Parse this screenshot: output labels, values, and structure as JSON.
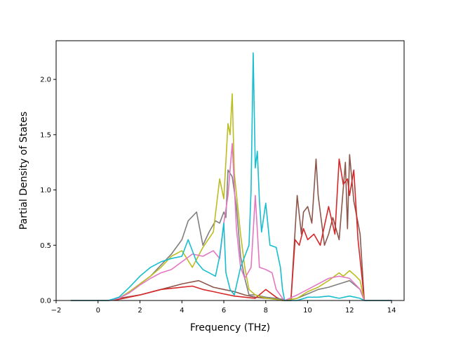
{
  "chart_data": {
    "type": "line",
    "title": "",
    "xlabel": "Frequency (THz)",
    "ylabel": "Partial Density of States",
    "xlim": [
      -2.0,
      14.6
    ],
    "ylim": [
      0.0,
      2.35
    ],
    "xticks": [
      -2,
      0,
      2,
      4,
      6,
      8,
      10,
      12,
      14
    ],
    "xtick_labels": [
      "−2",
      "0",
      "2",
      "4",
      "6",
      "8",
      "10",
      "12",
      "14"
    ],
    "yticks": [
      0.0,
      0.5,
      1.0,
      1.5,
      2.0
    ],
    "ytick_labels": [
      "0.0",
      "0.5",
      "1.0",
      "1.5",
      "2.0"
    ],
    "grid": false,
    "legend": "none",
    "series": [
      {
        "color": "#8c564b",
        "x": [
          -1.3,
          0.5,
          1.0,
          2.0,
          3.0,
          4.0,
          4.8,
          5.5,
          6.0,
          6.5,
          7.0,
          7.5,
          8.0,
          8.5,
          8.8,
          8.9,
          9.2,
          9.5,
          9.7,
          9.8,
          10.0,
          10.2,
          10.4,
          10.5,
          10.8,
          11.0,
          11.2,
          11.5,
          11.8,
          11.9,
          12.0,
          12.2,
          12.5,
          12.7,
          14.0
        ],
        "y": [
          0.0,
          0.0,
          0.02,
          0.05,
          0.1,
          0.15,
          0.18,
          0.12,
          0.1,
          0.08,
          0.05,
          0.03,
          0.02,
          0.02,
          0.01,
          0.0,
          0.0,
          0.95,
          0.6,
          0.8,
          0.85,
          0.7,
          1.28,
          0.95,
          0.5,
          0.6,
          0.75,
          0.55,
          1.25,
          0.65,
          1.32,
          0.9,
          0.6,
          0.0,
          0.0
        ]
      },
      {
        "color": "#d62728",
        "x": [
          -1.3,
          0.5,
          1.0,
          2.0,
          3.0,
          4.0,
          4.5,
          5.0,
          5.5,
          6.0,
          6.5,
          7.0,
          7.5,
          8.0,
          8.5,
          8.8,
          8.9,
          9.2,
          9.4,
          9.6,
          9.8,
          10.0,
          10.3,
          10.6,
          11.0,
          11.3,
          11.5,
          11.7,
          11.9,
          12.0,
          12.2,
          12.4,
          12.6,
          12.7,
          14.0
        ],
        "y": [
          0.0,
          0.0,
          0.01,
          0.05,
          0.1,
          0.12,
          0.13,
          0.1,
          0.08,
          0.06,
          0.04,
          0.03,
          0.02,
          0.1,
          0.03,
          0.0,
          0.0,
          0.0,
          0.55,
          0.5,
          0.65,
          0.55,
          0.6,
          0.5,
          0.85,
          0.6,
          1.28,
          1.05,
          1.1,
          0.95,
          1.18,
          0.55,
          0.2,
          0.0,
          0.0
        ]
      },
      {
        "color": "#7f7f7f",
        "x": [
          -1.3,
          0.5,
          1.0,
          1.5,
          2.0,
          2.5,
          3.0,
          3.5,
          4.0,
          4.3,
          4.7,
          5.0,
          5.3,
          5.6,
          5.8,
          6.0,
          6.1,
          6.2,
          6.4,
          6.6,
          6.8,
          7.0,
          7.2,
          7.5,
          8.0,
          8.5,
          8.8,
          8.9,
          9.5,
          10.0,
          10.5,
          11.0,
          11.5,
          12.0,
          12.5,
          12.7,
          14.0
        ],
        "y": [
          0.0,
          0.0,
          0.02,
          0.08,
          0.15,
          0.22,
          0.32,
          0.42,
          0.55,
          0.72,
          0.8,
          0.5,
          0.62,
          0.72,
          0.7,
          0.8,
          0.75,
          1.18,
          1.12,
          0.85,
          0.4,
          0.2,
          0.05,
          0.05,
          0.03,
          0.02,
          0.01,
          0.0,
          0.02,
          0.06,
          0.1,
          0.12,
          0.15,
          0.18,
          0.1,
          0.0,
          0.0
        ]
      },
      {
        "color": "#bcbd22",
        "x": [
          -1.3,
          0.5,
          1.0,
          1.5,
          2.0,
          2.5,
          3.0,
          3.5,
          4.0,
          4.5,
          5.0,
          5.5,
          5.8,
          6.0,
          6.2,
          6.3,
          6.4,
          6.5,
          6.8,
          7.0,
          7.2,
          7.5,
          8.0,
          8.5,
          8.8,
          8.9,
          9.5,
          10.0,
          10.5,
          11.0,
          11.5,
          11.7,
          12.0,
          12.3,
          12.5,
          12.7,
          14.0
        ],
        "y": [
          0.0,
          0.0,
          0.02,
          0.08,
          0.15,
          0.22,
          0.3,
          0.4,
          0.45,
          0.3,
          0.48,
          0.62,
          1.1,
          0.92,
          1.6,
          1.5,
          1.87,
          1.15,
          0.6,
          0.3,
          0.1,
          0.05,
          0.02,
          0.01,
          0.0,
          0.0,
          0.02,
          0.08,
          0.12,
          0.18,
          0.25,
          0.22,
          0.27,
          0.22,
          0.18,
          0.0,
          0.0
        ]
      },
      {
        "color": "#e377c2",
        "x": [
          -1.3,
          0.5,
          1.0,
          1.5,
          2.0,
          2.5,
          3.0,
          3.5,
          4.0,
          4.5,
          5.0,
          5.5,
          5.8,
          6.0,
          6.2,
          6.4,
          6.6,
          6.8,
          7.0,
          7.3,
          7.5,
          7.7,
          8.0,
          8.3,
          8.5,
          8.8,
          8.9,
          9.5,
          10.0,
          10.5,
          11.0,
          11.5,
          12.0,
          12.5,
          12.7,
          14.0
        ],
        "y": [
          0.0,
          0.0,
          0.02,
          0.07,
          0.14,
          0.2,
          0.25,
          0.28,
          0.35,
          0.42,
          0.4,
          0.45,
          0.38,
          0.7,
          0.95,
          1.42,
          0.65,
          0.3,
          0.2,
          0.3,
          0.95,
          0.3,
          0.28,
          0.25,
          0.1,
          0.02,
          0.0,
          0.05,
          0.1,
          0.15,
          0.2,
          0.22,
          0.2,
          0.1,
          0.0,
          0.0
        ]
      },
      {
        "color": "#17becf",
        "x": [
          -1.3,
          0.5,
          1.0,
          1.5,
          2.0,
          2.5,
          3.0,
          3.5,
          4.0,
          4.3,
          4.7,
          5.0,
          5.3,
          5.6,
          5.8,
          6.0,
          6.1,
          6.3,
          6.5,
          6.8,
          7.0,
          7.2,
          7.3,
          7.4,
          7.5,
          7.6,
          7.7,
          7.8,
          8.0,
          8.2,
          8.5,
          8.7,
          8.8,
          8.9,
          9.5,
          10.0,
          10.5,
          11.0,
          11.5,
          12.0,
          12.5,
          12.7,
          14.0
        ],
        "y": [
          0.0,
          0.0,
          0.03,
          0.12,
          0.22,
          0.3,
          0.35,
          0.38,
          0.4,
          0.55,
          0.35,
          0.28,
          0.25,
          0.22,
          0.4,
          0.7,
          0.25,
          0.1,
          0.05,
          0.3,
          0.4,
          0.5,
          1.0,
          2.24,
          1.2,
          1.35,
          0.9,
          0.62,
          0.88,
          0.5,
          0.48,
          0.3,
          0.1,
          0.0,
          0.0,
          0.03,
          0.03,
          0.04,
          0.02,
          0.04,
          0.02,
          0.0,
          0.0
        ]
      }
    ]
  }
}
